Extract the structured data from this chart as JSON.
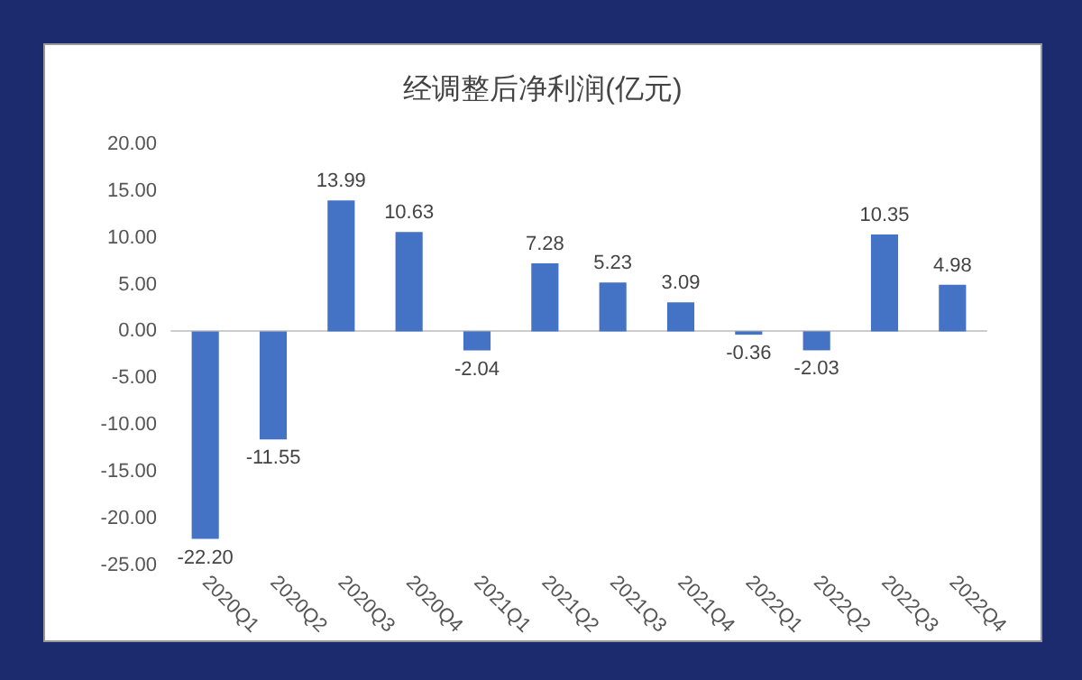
{
  "chart_data": {
    "type": "bar",
    "title": "经调整后净利润(亿元)",
    "categories": [
      "2020Q1",
      "2020Q2",
      "2020Q3",
      "2020Q4",
      "2021Q1",
      "2021Q2",
      "2021Q3",
      "2021Q4",
      "2022Q1",
      "2022Q2",
      "2022Q3",
      "2022Q4"
    ],
    "values": [
      -22.2,
      -11.55,
      13.99,
      10.63,
      -2.04,
      7.28,
      5.23,
      3.09,
      -0.36,
      -2.03,
      10.35,
      4.98
    ],
    "color": "#4472c4",
    "value_labels": [
      "-22.20",
      "-11.55",
      "13.99",
      "10.63",
      "-2.04",
      "7.28",
      "5.23",
      "3.09",
      "-0.36",
      "-2.03",
      "10.35",
      "4.98"
    ],
    "ylim": [
      -25,
      20
    ],
    "yticks": [
      {
        "value": -25,
        "label": "-25.00"
      },
      {
        "value": -20,
        "label": "-20.00"
      },
      {
        "value": -15,
        "label": "-15.00"
      },
      {
        "value": -10,
        "label": "-10.00"
      },
      {
        "value": -5,
        "label": "-5.00"
      },
      {
        "value": 0,
        "label": "0.00"
      },
      {
        "value": 5,
        "label": "5.00"
      },
      {
        "value": 10,
        "label": "10.00"
      },
      {
        "value": 15,
        "label": "15.00"
      },
      {
        "value": 20,
        "label": "20.00"
      }
    ]
  }
}
